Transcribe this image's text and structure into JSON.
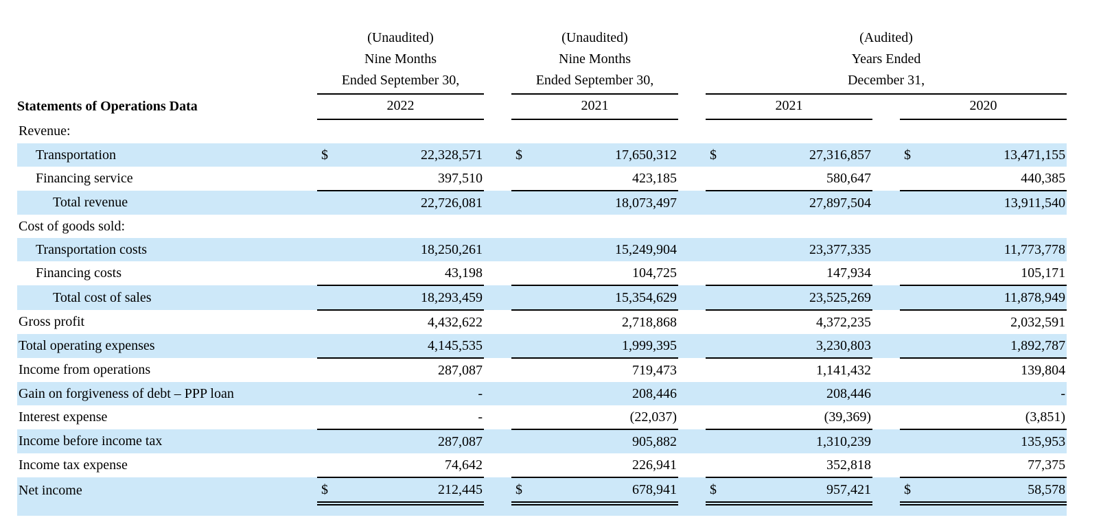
{
  "title": "Statements of Operations Data",
  "currency_symbol": "$",
  "colors": {
    "row_highlight": "#cde8f9",
    "text": "#000000",
    "rule": "#000000"
  },
  "header": {
    "groups": [
      {
        "audit": "(Unaudited)",
        "period1": "Nine Months",
        "period2": "Ended September 30,",
        "year": "2022"
      },
      {
        "audit": "(Unaudited)",
        "period1": "Nine Months",
        "period2": "Ended September 30,",
        "year": "2021"
      },
      {
        "audit": "(Audited)",
        "period1": "Years Ended",
        "period2": "December 31,",
        "years": [
          "2021",
          "2020"
        ]
      }
    ]
  },
  "rows": [
    {
      "label": "Revenue:",
      "indent": 0,
      "blue": false,
      "dollar": false,
      "rule": "none",
      "values": [
        "",
        "",
        "",
        ""
      ]
    },
    {
      "label": "Transportation",
      "indent": 1,
      "blue": true,
      "dollar": true,
      "rule": "none",
      "values": [
        "22,328,571",
        "17,650,312",
        "27,316,857",
        "13,471,155"
      ]
    },
    {
      "label": "Financing service",
      "indent": 1,
      "blue": false,
      "dollar": false,
      "rule": "single",
      "values": [
        "397,510",
        "423,185",
        "580,647",
        "440,385"
      ]
    },
    {
      "label": "Total revenue",
      "indent": 2,
      "blue": true,
      "dollar": false,
      "rule": "none",
      "values": [
        "22,726,081",
        "18,073,497",
        "27,897,504",
        "13,911,540"
      ]
    },
    {
      "label": "Cost of goods sold:",
      "indent": 0,
      "blue": false,
      "dollar": false,
      "rule": "none",
      "values": [
        "",
        "",
        "",
        ""
      ]
    },
    {
      "label": "Transportation costs",
      "indent": 1,
      "blue": true,
      "dollar": false,
      "rule": "none",
      "values": [
        "18,250,261",
        "15,249,904",
        "23,377,335",
        "11,773,778"
      ]
    },
    {
      "label": "Financing costs",
      "indent": 1,
      "blue": false,
      "dollar": false,
      "rule": "single",
      "values": [
        "43,198",
        "104,725",
        "147,934",
        "105,171"
      ]
    },
    {
      "label": "Total cost of sales",
      "indent": 2,
      "blue": true,
      "dollar": false,
      "rule": "single",
      "values": [
        "18,293,459",
        "15,354,629",
        "23,525,269",
        "11,878,949"
      ]
    },
    {
      "label": "Gross profit",
      "indent": 0,
      "blue": false,
      "dollar": false,
      "rule": "none",
      "values": [
        "4,432,622",
        "2,718,868",
        "4,372,235",
        "2,032,591"
      ]
    },
    {
      "label": "Total operating expenses",
      "indent": 0,
      "blue": true,
      "dollar": false,
      "rule": "single",
      "values": [
        "4,145,535",
        "1,999,395",
        "3,230,803",
        "1,892,787"
      ]
    },
    {
      "label": "Income from operations",
      "indent": 0,
      "blue": false,
      "dollar": false,
      "rule": "none",
      "values": [
        "287,087",
        "719,473",
        "1,141,432",
        "139,804"
      ]
    },
    {
      "label": "Gain on forgiveness of debt – PPP loan",
      "indent": 0,
      "blue": true,
      "dollar": false,
      "rule": "none",
      "values": [
        "-",
        "208,446",
        "208,446",
        "-"
      ]
    },
    {
      "label": "Interest expense",
      "indent": 0,
      "blue": false,
      "dollar": false,
      "rule": "single",
      "values": [
        "-",
        "(22,037)",
        "(39,369)",
        "(3,851)"
      ]
    },
    {
      "label": "Income before income tax",
      "indent": 0,
      "blue": true,
      "dollar": false,
      "rule": "none",
      "values": [
        "287,087",
        "905,882",
        "1,310,239",
        "135,953"
      ]
    },
    {
      "label": "Income tax expense",
      "indent": 0,
      "blue": false,
      "dollar": false,
      "rule": "single",
      "values": [
        "74,642",
        "226,941",
        "352,818",
        "77,375"
      ]
    },
    {
      "label": "Net income",
      "indent": 0,
      "blue": true,
      "dollar": true,
      "rule": "double",
      "values": [
        "212,445",
        "678,941",
        "957,421",
        "58,578"
      ]
    },
    {
      "spacer": true,
      "blue": true
    }
  ]
}
